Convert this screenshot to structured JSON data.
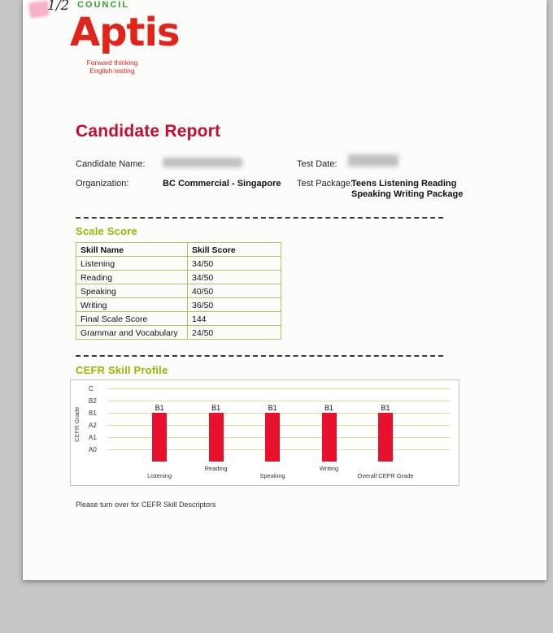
{
  "report": {
    "page_indicator": "1/2",
    "council_wordmark": "COUNCIL",
    "logo": {
      "wordmark": "Aptis",
      "tagline_line1": "Forward thinking",
      "tagline_line2": "English testing"
    },
    "title": "Candidate Report",
    "fields": {
      "candidate_name_label": "Candidate Name:",
      "test_date_label": "Test Date:",
      "organization_label": "Organization:",
      "organization_value": "BC Commercial - Singapore",
      "test_package_label": "Test Package:",
      "test_package_value": "Teens Listening Reading Speaking Writing Package"
    },
    "scale_score": {
      "heading": "Scale Score",
      "table": {
        "headers": [
          "Skill Name",
          "Skill Score"
        ],
        "rows": [
          [
            "Listening",
            "34/50"
          ],
          [
            "Reading",
            "34/50"
          ],
          [
            "Speaking",
            "40/50"
          ],
          [
            "Writing",
            "36/50"
          ],
          [
            "Final Scale Score",
            "144"
          ],
          [
            "Grammar and Vocabulary",
            "24/50"
          ]
        ]
      }
    },
    "cefr_profile_heading": "CEFR Skill Profile",
    "footer_note": "Please turn over for CEFR Skill Descriptors"
  },
  "chart_data": {
    "type": "bar",
    "title": "CEFR Skill Profile",
    "ylabel": "CEFR Grade",
    "y_ticks_top_to_bottom": [
      "C",
      "B2",
      "B1",
      "A2",
      "A1",
      "A0"
    ],
    "categories": [
      "Listening",
      "Reading",
      "Speaking",
      "Writing",
      "Overall CEFR Grade"
    ],
    "values": [
      "B1",
      "B1",
      "B1",
      "B1",
      "B1"
    ],
    "bar_color": "#e8112d",
    "gridlines": true,
    "legend": "none"
  },
  "colors": {
    "brand_red": "#e2231a",
    "title_red": "#c60c30",
    "heading_green": "#9cb400",
    "council_green": "#33a02c",
    "table_border_green": "#aec35f",
    "gridline_green": "#cfe09a",
    "bar_red": "#e8112d"
  }
}
